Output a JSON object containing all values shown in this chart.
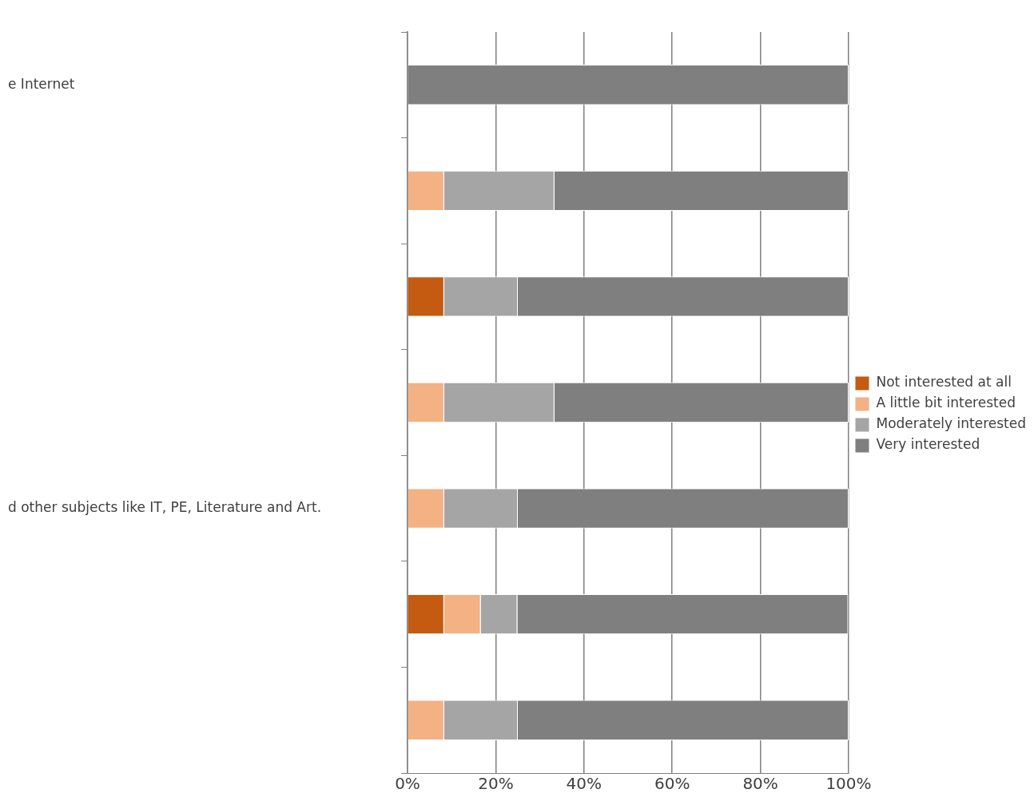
{
  "chart_data": {
    "type": "bar",
    "orientation": "horizontal",
    "stacked": true,
    "categories": [
      "e Internet",
      null,
      null,
      null,
      "d other subjects like IT, PE, Literature and Art.",
      null,
      null
    ],
    "series": [
      {
        "name": "Not interested at all",
        "color": "#c55a11",
        "values": [
          0,
          0,
          8.3,
          0,
          0,
          8.3,
          0
        ]
      },
      {
        "name": "A little bit interested",
        "color": "#f4b183",
        "values": [
          0,
          8.3,
          0,
          8.3,
          8.3,
          8.3,
          8.3
        ]
      },
      {
        "name": "Moderately interested",
        "color": "#a5a5a5",
        "values": [
          0,
          25,
          16.7,
          25,
          16.7,
          8.3,
          16.7
        ]
      },
      {
        "name": "Very interested",
        "color": "#7f7f7f",
        "values": [
          100,
          66.7,
          75,
          66.7,
          75,
          75,
          75
        ]
      }
    ],
    "xlim": [
      0,
      100
    ],
    "xticks": [
      {
        "value": 0,
        "label": "0%"
      },
      {
        "value": 20,
        "label": "20%"
      },
      {
        "value": 40,
        "label": "40%"
      },
      {
        "value": 60,
        "label": "60%"
      },
      {
        "value": 80,
        "label": "80%"
      },
      {
        "value": 100,
        "label": "100%"
      }
    ],
    "grid": "x",
    "legend": "right"
  }
}
